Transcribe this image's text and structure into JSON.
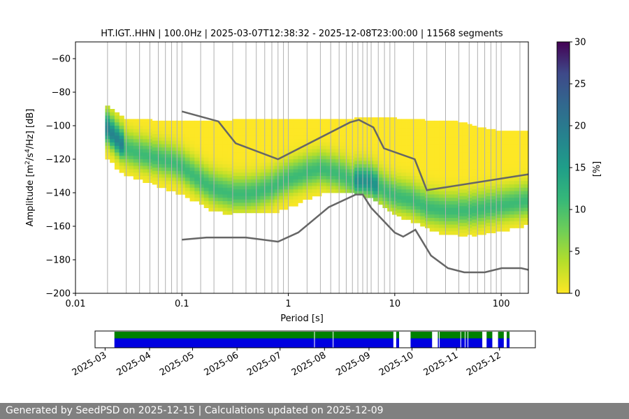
{
  "chart_data": {
    "type": "heatmap",
    "title": "HT.IGT..HHN | 100.0Hz | 2025-03-07T12:38:32 - 2025-12-08T23:00:00 | 11568 segments",
    "xlabel": "Period [s]",
    "ylabel_main": "Amplitude [m",
    "ylabel_tail": "/Hz] [dB]",
    "ylabel_sup1": "2",
    "ylabel_sup2": "4",
    "ylabel_mid": "/s",
    "x_scale": "log",
    "xlim": [
      0.01,
      180
    ],
    "ylim": [
      -200,
      -50
    ],
    "x_ticks": [
      {
        "value": 0.01,
        "label": "0.01"
      },
      {
        "value": 0.1,
        "label": "0.1"
      },
      {
        "value": 1,
        "label": "1"
      },
      {
        "value": 10,
        "label": "10"
      },
      {
        "value": 100,
        "label": "100"
      }
    ],
    "y_ticks": [
      -200,
      -180,
      -160,
      -140,
      -120,
      -100,
      -80,
      -60
    ],
    "grid": "vertical lines at period bins",
    "colorbar": {
      "label": "[%]",
      "min": 0,
      "max": 30,
      "ticks": [
        0,
        5,
        10,
        15,
        20,
        25,
        30
      ],
      "colormap": "viridis_r"
    },
    "psd_mode": [
      [
        0.02,
        -101
      ],
      [
        0.025,
        -108
      ],
      [
        0.03,
        -113
      ],
      [
        0.04,
        -116
      ],
      [
        0.06,
        -119
      ],
      [
        0.08,
        -121
      ],
      [
        0.1,
        -124
      ],
      [
        0.15,
        -132
      ],
      [
        0.2,
        -137
      ],
      [
        0.3,
        -140
      ],
      [
        0.4,
        -140
      ],
      [
        0.5,
        -139
      ],
      [
        0.7,
        -136
      ],
      [
        1.0,
        -131
      ],
      [
        1.5,
        -127
      ],
      [
        2.0,
        -125
      ],
      [
        3.0,
        -128
      ],
      [
        4.0,
        -132
      ],
      [
        5.0,
        -132
      ],
      [
        6.0,
        -133
      ],
      [
        8.0,
        -138
      ],
      [
        10,
        -141
      ],
      [
        15,
        -144
      ],
      [
        20,
        -148
      ],
      [
        30,
        -150
      ],
      [
        50,
        -150
      ],
      [
        80,
        -148
      ],
      [
        120,
        -146
      ],
      [
        180,
        -144
      ]
    ],
    "psd_top": [
      [
        0.02,
        -88
      ],
      [
        0.03,
        -95
      ],
      [
        0.05,
        -96
      ],
      [
        0.1,
        -97
      ],
      [
        0.2,
        -97
      ],
      [
        0.3,
        -96
      ],
      [
        0.5,
        -95
      ],
      [
        1,
        -96
      ],
      [
        2,
        -96
      ],
      [
        4,
        -95
      ],
      [
        6,
        -95
      ],
      [
        10,
        -95
      ],
      [
        20,
        -96
      ],
      [
        40,
        -97
      ],
      [
        60,
        -100
      ],
      [
        100,
        -103
      ],
      [
        180,
        -102
      ]
    ],
    "psd_bottom": [
      [
        0.02,
        -120
      ],
      [
        0.03,
        -128
      ],
      [
        0.05,
        -134
      ],
      [
        0.1,
        -140
      ],
      [
        0.15,
        -146
      ],
      [
        0.2,
        -150
      ],
      [
        0.3,
        -152
      ],
      [
        0.5,
        -152
      ],
      [
        0.8,
        -150
      ],
      [
        1,
        -148
      ],
      [
        2,
        -140
      ],
      [
        3,
        -138
      ],
      [
        5,
        -140
      ],
      [
        7,
        -145
      ],
      [
        10,
        -152
      ],
      [
        20,
        -160
      ],
      [
        30,
        -165
      ],
      [
        50,
        -165
      ],
      [
        100,
        -162
      ],
      [
        180,
        -158
      ]
    ],
    "nhnm": [
      [
        0.1,
        -91.5
      ],
      [
        0.22,
        -97.4
      ],
      [
        0.32,
        -110.5
      ],
      [
        0.8,
        -120.0
      ],
      [
        3.8,
        -98.0
      ],
      [
        4.6,
        -96.5
      ],
      [
        6.3,
        -101.0
      ],
      [
        7.9,
        -113.5
      ],
      [
        15.4,
        -120.0
      ],
      [
        20,
        -138.5
      ],
      [
        180,
        -129
      ]
    ],
    "nlnm": [
      [
        0.1,
        -168.0
      ],
      [
        0.17,
        -166.7
      ],
      [
        0.4,
        -166.7
      ],
      [
        0.8,
        -169.2
      ],
      [
        1.24,
        -163.7
      ],
      [
        2.4,
        -148.6
      ],
      [
        4.3,
        -141.1
      ],
      [
        5.0,
        -141.1
      ],
      [
        6.0,
        -149.0
      ],
      [
        10.0,
        -163.8
      ],
      [
        12.0,
        -166.2
      ],
      [
        15.6,
        -162.1
      ],
      [
        21.9,
        -177.5
      ],
      [
        31.6,
        -185.0
      ],
      [
        45,
        -187.5
      ],
      [
        70,
        -187.5
      ],
      [
        101,
        -185.0
      ],
      [
        154,
        -185.0
      ],
      [
        180,
        -186
      ]
    ],
    "availability": {
      "tick_labels": [
        "2025-03",
        "2025-04",
        "2025-05",
        "2025-06",
        "2025-07",
        "2025-08",
        "2025-09",
        "2025-10",
        "2025-11",
        "2025-12"
      ],
      "tick_days": [
        0,
        31,
        61,
        92,
        122,
        153,
        184,
        214,
        245,
        275
      ],
      "range_days": [
        -7,
        300
      ],
      "coverage_days": [
        [
          6.5,
          201
        ],
        [
          203,
          205
        ],
        [
          213,
          228
        ],
        [
          232,
          263
        ],
        [
          266,
          270
        ],
        [
          274,
          278
        ],
        [
          280,
          282
        ]
      ],
      "gap_lines_days": [
        146,
        159,
        233,
        248,
        251,
        253
      ],
      "green_color": "#008000",
      "blue_color": "#0000e0"
    }
  },
  "footer": {
    "text": "Generated by SeedPSD on 2025-12-15 | Calculations updated on 2025-12-09"
  }
}
